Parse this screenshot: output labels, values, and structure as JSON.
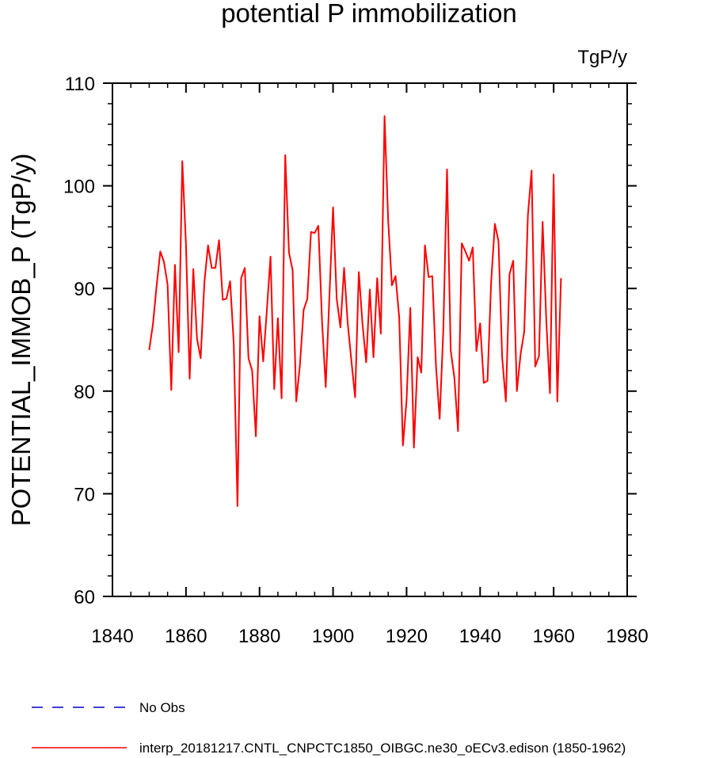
{
  "chart_data": {
    "type": "line",
    "title": "potential P immobilization",
    "units": "TgP/y",
    "ylabel": "POTENTIAL_IMMOB_P  (TgP/y)",
    "xlabel": "",
    "xlim": [
      1840,
      1980
    ],
    "ylim": [
      60,
      110
    ],
    "x_ticks": [
      1840,
      1860,
      1880,
      1900,
      1920,
      1940,
      1960,
      1980
    ],
    "y_ticks": [
      60,
      70,
      80,
      90,
      100,
      110
    ],
    "x_tick_labels": [
      "1840",
      "1860",
      "1880",
      "1900",
      "1920",
      "1940",
      "1960",
      "1980"
    ],
    "y_tick_labels": [
      "60",
      "70",
      "80",
      "90",
      "100",
      "110"
    ],
    "grid": false,
    "legend_position": "bottom",
    "series": [
      {
        "name": "No Obs",
        "color": "#0000cc",
        "dash": "dashed",
        "x": [],
        "y": []
      },
      {
        "name": "interp_20181217.CNTL_CNPCTC1850_OIBGC.ne30_oECv3.edison (1850-1962)",
        "color": "#ff0000",
        "dash": "solid",
        "x": [
          1850,
          1851,
          1852,
          1853,
          1854,
          1855,
          1856,
          1857,
          1858,
          1859,
          1860,
          1861,
          1862,
          1863,
          1864,
          1865,
          1866,
          1867,
          1868,
          1869,
          1870,
          1871,
          1872,
          1873,
          1874,
          1875,
          1876,
          1877,
          1878,
          1879,
          1880,
          1881,
          1882,
          1883,
          1884,
          1885,
          1886,
          1887,
          1888,
          1889,
          1890,
          1891,
          1892,
          1893,
          1894,
          1895,
          1896,
          1897,
          1898,
          1899,
          1900,
          1901,
          1902,
          1903,
          1904,
          1905,
          1906,
          1907,
          1908,
          1909,
          1910,
          1911,
          1912,
          1913,
          1914,
          1915,
          1916,
          1917,
          1918,
          1919,
          1920,
          1921,
          1922,
          1923,
          1924,
          1925,
          1926,
          1927,
          1928,
          1929,
          1930,
          1931,
          1932,
          1933,
          1934,
          1935,
          1936,
          1937,
          1938,
          1939,
          1940,
          1941,
          1942,
          1943,
          1944,
          1945,
          1946,
          1947,
          1948,
          1949,
          1950,
          1951,
          1952,
          1953,
          1954,
          1955,
          1956,
          1957,
          1958,
          1959,
          1960,
          1961,
          1962
        ],
        "y": [
          84.0,
          86.5,
          90.2,
          93.6,
          92.6,
          90.4,
          80.1,
          92.3,
          83.8,
          102.4,
          94.2,
          81.2,
          91.9,
          85.1,
          83.2,
          90.6,
          94.2,
          92.0,
          92.0,
          94.7,
          88.9,
          89.0,
          90.7,
          84.6,
          68.8,
          91.0,
          92.0,
          83.2,
          82.0,
          75.6,
          87.3,
          82.9,
          87.9,
          93.1,
          80.2,
          87.1,
          79.3,
          103.0,
          93.5,
          91.8,
          79.0,
          82.6,
          87.9,
          89.0,
          95.5,
          95.4,
          96.1,
          86.9,
          80.4,
          89.1,
          97.9,
          89.0,
          86.2,
          92.0,
          86.6,
          82.9,
          79.4,
          91.6,
          86.6,
          82.8,
          89.9,
          83.3,
          91.0,
          85.6,
          106.8,
          96.6,
          90.3,
          91.2,
          87.2,
          74.7,
          79.1,
          88.1,
          74.5,
          83.3,
          81.8,
          94.2,
          91.1,
          91.2,
          82.4,
          77.3,
          86.1,
          101.6,
          84.0,
          81.3,
          76.1,
          94.4,
          93.6,
          92.7,
          94.0,
          83.9,
          86.6,
          80.8,
          81.0,
          90.6,
          96.3,
          94.6,
          83.3,
          79.0,
          91.4,
          92.7,
          80.0,
          83.6,
          85.8,
          97.1,
          101.5,
          82.4,
          83.4,
          96.5,
          86.8,
          79.8,
          101.1,
          79.0,
          91.0
        ]
      }
    ]
  }
}
